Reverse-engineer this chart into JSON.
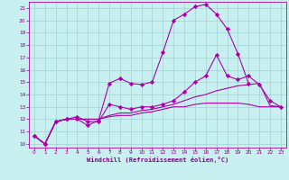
{
  "xlabel": "Windchill (Refroidissement éolien,°C)",
  "bg_color": "#c8f0f0",
  "grid_color": "#a0d0d0",
  "line_color": "#aa00aa",
  "spine_color": "#aa00aa",
  "tick_color": "#880088",
  "xlim": [
    -0.5,
    23.5
  ],
  "ylim": [
    9.7,
    21.5
  ],
  "yticks": [
    10,
    11,
    12,
    13,
    14,
    15,
    16,
    17,
    18,
    19,
    20,
    21
  ],
  "xticks": [
    0,
    1,
    2,
    3,
    4,
    5,
    6,
    7,
    8,
    9,
    10,
    11,
    12,
    13,
    14,
    15,
    16,
    17,
    18,
    19,
    20,
    21,
    22,
    23
  ],
  "line1_x": [
    0,
    1,
    2,
    3,
    4,
    5,
    6,
    7,
    8,
    9,
    10,
    11,
    12,
    13,
    14,
    15,
    16,
    17,
    18,
    19,
    20
  ],
  "line1_y": [
    10.65,
    10.0,
    11.8,
    12.0,
    12.0,
    11.5,
    11.9,
    14.9,
    15.3,
    14.9,
    14.8,
    15.0,
    17.4,
    20.0,
    20.5,
    21.1,
    21.3,
    20.5,
    19.3,
    17.3,
    14.9
  ],
  "line2_x": [
    0,
    1,
    2,
    3,
    4,
    5,
    6,
    7,
    8,
    9,
    10,
    11,
    12,
    13,
    14,
    15,
    16,
    17,
    18,
    19,
    20,
    21,
    22,
    23
  ],
  "line2_y": [
    10.65,
    10.0,
    11.8,
    12.0,
    12.2,
    11.8,
    11.8,
    13.2,
    13.0,
    12.8,
    13.0,
    13.0,
    13.2,
    13.5,
    14.2,
    15.0,
    15.5,
    17.2,
    15.5,
    15.2,
    15.5,
    14.8,
    13.5,
    13.0
  ],
  "line3_x": [
    0,
    1,
    2,
    3,
    4,
    5,
    6,
    7,
    8,
    9,
    10,
    11,
    12,
    13,
    14,
    15,
    16,
    17,
    18,
    19,
    20,
    21,
    22,
    23
  ],
  "line3_y": [
    10.65,
    10.0,
    11.8,
    12.0,
    12.0,
    12.0,
    12.0,
    12.3,
    12.5,
    12.5,
    12.7,
    12.8,
    13.0,
    13.2,
    13.5,
    13.8,
    14.0,
    14.3,
    14.5,
    14.7,
    14.8,
    14.9,
    13.1,
    13.0
  ],
  "line4_x": [
    0,
    1,
    2,
    3,
    4,
    5,
    6,
    7,
    8,
    9,
    10,
    11,
    12,
    13,
    14,
    15,
    16,
    17,
    18,
    19,
    20,
    21,
    22,
    23
  ],
  "line4_y": [
    10.65,
    10.0,
    11.8,
    12.0,
    12.0,
    12.0,
    12.0,
    12.2,
    12.3,
    12.3,
    12.5,
    12.6,
    12.8,
    13.0,
    13.0,
    13.2,
    13.3,
    13.3,
    13.3,
    13.3,
    13.2,
    13.0,
    13.0,
    13.0
  ]
}
